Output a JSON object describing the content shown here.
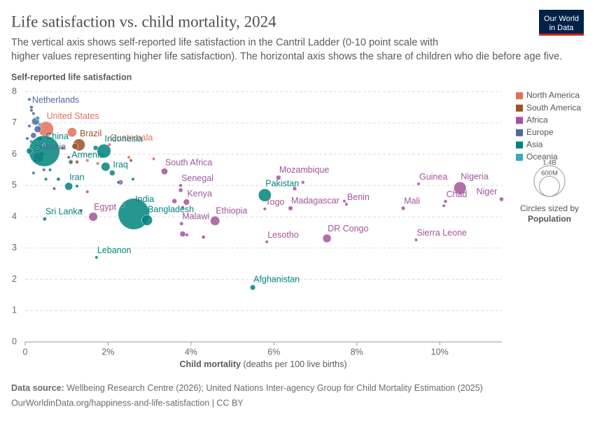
{
  "chart_data": {
    "type": "scatter",
    "title": "Life satisfaction vs. child mortality, 2024",
    "subtitle": "The vertical axis shows self-reported life satisfaction in the Cantril Ladder (0-10 point scale with higher values representing higher life satisfaction). The horizontal axis shows the share of children who die before age five.",
    "ylabel": "Self-reported life satisfaction",
    "xlabel": "Child mortality",
    "xlabel_unit": "(deaths per 100 live births)",
    "logo": [
      "Our World",
      "in Data"
    ],
    "source_label": "Data source:",
    "source": "Wellbeing Research Centre (2026); United Nations Inter-agency Group for Child Mortality Estimation (2025)",
    "url": "OurWorldinData.org/happiness-and-life-satisfaction | CC BY",
    "xlim": [
      0,
      11.5
    ],
    "xticks": [
      {
        "value": 0,
        "label": "0"
      },
      {
        "value": 2,
        "label": "2%"
      },
      {
        "value": 4,
        "label": "4%"
      },
      {
        "value": 6,
        "label": "6%"
      },
      {
        "value": 8,
        "label": "8%"
      },
      {
        "value": 10,
        "label": "10%"
      }
    ],
    "ylim": [
      0,
      8
    ],
    "yticks": [
      0,
      1,
      2,
      3,
      4,
      5,
      6,
      7,
      8
    ],
    "grid": true,
    "legend_position": "right",
    "size_legend_title": "Circles sized by",
    "size_legend_variable": "Population",
    "size_legend": [
      {
        "value": 1400,
        "label": "1.4B"
      },
      {
        "value": 600,
        "label": "600M"
      }
    ],
    "series": [
      {
        "name": "North America",
        "color": "#E56E5A",
        "x": [
          0.5,
          1.13,
          1.5,
          1.75,
          2.03,
          2.5,
          3.1
        ],
        "y": [
          6.8,
          6.7,
          5.8,
          5.7,
          6.3,
          5.9,
          5.85
        ],
        "size": [
          340,
          130,
          10,
          10,
          18,
          5,
          11
        ],
        "labels": [
          "United States",
          null,
          null,
          null,
          "Guatemala",
          null,
          null
        ]
      },
      {
        "name": "South America",
        "color": "#9A5129",
        "x": [
          1.3,
          0.9,
          1.1,
          1.25,
          1.2,
          2.55
        ],
        "y": [
          6.3,
          6.2,
          5.75,
          5.75,
          6.25,
          5.8
        ],
        "size": [
          210,
          19,
          33,
          18,
          52,
          7
        ],
        "labels": [
          "Brazil",
          null,
          null,
          null,
          null,
          null
        ]
      },
      {
        "name": "Africa",
        "color": "#A2559C",
        "x": [
          3.36,
          3.75,
          3.89,
          4.58,
          3.77,
          6.11,
          5.78,
          6.4,
          7.75,
          5.83,
          7.28,
          9.49,
          10.49,
          10.14,
          11.49,
          9.12,
          9.43,
          1.64,
          3.75,
          3.6,
          3.8,
          3.8,
          3.9,
          4.3,
          6.7,
          6.5,
          7.7,
          10.1,
          1.5,
          1.35,
          2.3
        ],
        "y": [
          5.45,
          5.0,
          4.47,
          3.87,
          3.78,
          5.25,
          4.25,
          4.27,
          4.4,
          3.2,
          3.31,
          5.05,
          4.92,
          4.49,
          4.56,
          4.27,
          3.26,
          4.0,
          4.85,
          4.5,
          4.3,
          3.45,
          3.42,
          3.35,
          5.1,
          4.9,
          4.5,
          4.35,
          4.8,
          4.2,
          5.1
        ],
        "size": [
          63,
          18,
          55,
          130,
          21,
          34,
          9,
          31,
          14,
          2.3,
          105,
          14,
          225,
          19,
          27,
          24,
          8.6,
          115,
          28,
          35,
          12,
          48,
          5,
          20,
          17,
          25,
          14,
          2,
          12,
          6,
          37
        ],
        "labels": [
          "South Africa",
          "Senegal",
          "Kenya",
          "Ethiopia",
          "Malawi",
          "Mozambique",
          "Togo",
          "Madagascar",
          "Benin",
          "Lesotho",
          "DR Congo",
          "Guinea",
          "Nigeria",
          "Chad",
          "Niger",
          "Mali",
          "Sierra Leone",
          "Egypt",
          null,
          null,
          null,
          null,
          null,
          null,
          null,
          null,
          null,
          null,
          null,
          null,
          null
        ]
      },
      {
        "name": "Europe",
        "color": "#4C6A9C",
        "x": [
          0.15,
          0.32,
          0.1,
          0.15,
          0.2,
          0.25,
          0.1,
          0.3,
          0.2,
          0.35,
          0.15,
          0.3,
          0.4,
          0.25,
          0.45,
          0.2,
          0.7,
          0.05,
          0.5,
          1.05
        ],
        "y": [
          7.5,
          5.9,
          7.75,
          7.4,
          7.3,
          7.05,
          6.9,
          6.8,
          6.6,
          6.5,
          6.4,
          6.2,
          6.0,
          5.8,
          5.5,
          5.4,
          4.9,
          6.5,
          6.3,
          5.9
        ],
        "size": [
          18,
          145,
          6,
          10,
          5.6,
          84,
          9,
          68,
          48,
          38,
          10,
          59,
          36,
          19,
          3,
          10,
          8,
          11,
          2.8,
          3.7
        ],
        "labels": [
          "Netherlands",
          "Russia",
          null,
          null,
          null,
          null,
          null,
          null,
          null,
          null,
          null,
          null,
          null,
          null,
          null,
          null,
          null,
          null,
          null,
          null
        ]
      },
      {
        "name": "Asia",
        "color": "#00847E",
        "x": [
          0.46,
          1.9,
          1.1,
          2.1,
          1.05,
          2.62,
          2.94,
          0.47,
          1.72,
          5.49,
          5.78,
          0.1,
          0.8,
          1.25,
          1.7,
          2.25,
          1.94,
          0.6,
          2.6,
          2.35,
          0.3,
          0.5
        ],
        "y": [
          6.1,
          6.1,
          5.75,
          5.4,
          4.97,
          4.09,
          3.89,
          3.93,
          2.7,
          1.74,
          4.69,
          6.1,
          5.2,
          4.98,
          6.2,
          5.1,
          5.6,
          5.5,
          5.2,
          4.35,
          6.2,
          5.2
        ],
        "size": [
          1410,
          280,
          3,
          45,
          90,
          1440,
          170,
          22,
          5.5,
          42,
          240,
          51,
          20,
          15,
          34,
          12,
          115,
          9,
          7,
          4,
          10,
          6
        ],
        "labels": [
          "China",
          "Indonesia",
          "Armenia",
          "Iraq",
          "Iran",
          "India",
          "Bangladesh",
          "Sri Lanka",
          "Lebanon",
          "Afghanistan",
          "Pakistan",
          null,
          null,
          null,
          null,
          null,
          null,
          null,
          null,
          null,
          null,
          null
        ]
      },
      {
        "name": "Oceania",
        "color": "#38AABA",
        "x": [
          0.3,
          0.35,
          0.45
        ],
        "y": [
          7.15,
          6.95,
          6.3
        ],
        "size": [
          27,
          5.2,
          1
        ],
        "labels": [
          null,
          null,
          null
        ]
      }
    ]
  }
}
